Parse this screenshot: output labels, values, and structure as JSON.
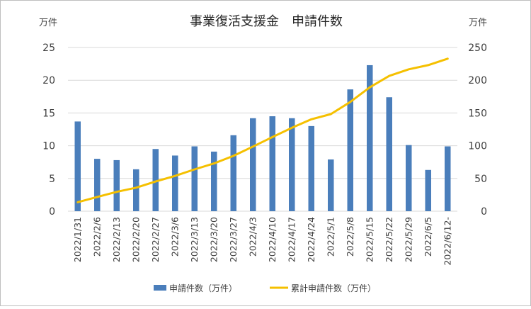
{
  "chart_data": {
    "type": "bar+line",
    "title": "事業復活支援金　申請件数",
    "y_left_unit": "万件",
    "y_right_unit": "万件",
    "ylim_left": [
      0,
      25
    ],
    "ylim_right": [
      0,
      250
    ],
    "y_left_ticks": [
      0,
      5,
      10,
      15,
      20,
      25
    ],
    "y_right_ticks": [
      0,
      50,
      100,
      150,
      200,
      250
    ],
    "categories": [
      "2022/1/31",
      "2022/2/6",
      "2022/2/13",
      "2022/2/20",
      "2022/2/27",
      "2022/3/6",
      "2022/3/13",
      "2022/3/20",
      "2022/3/27",
      "2022/4/3",
      "2022/4/10",
      "2022/4/17",
      "2022/4/24",
      "2022/5/1",
      "2022/5/8",
      "2022/5/15",
      "2022/5/22",
      "2022/5/29",
      "2022/6/5",
      "2022/6/12-"
    ],
    "series": [
      {
        "name": "申請件数（万件）",
        "type": "bar",
        "axis": "left",
        "color": "#4a7ebb",
        "values": [
          13.7,
          8.0,
          7.8,
          6.4,
          9.5,
          8.5,
          9.9,
          9.1,
          11.6,
          14.2,
          14.5,
          14.2,
          13.0,
          7.9,
          18.6,
          22.3,
          17.4,
          10.1,
          6.3,
          9.9
        ]
      },
      {
        "name": "累計申請件数（万件）",
        "type": "line",
        "axis": "right",
        "color": "#f5c000",
        "values": [
          13.7,
          21.7,
          29.5,
          35.9,
          45.4,
          53.9,
          63.8,
          72.9,
          84.5,
          98.7,
          113.2,
          127.4,
          140.4,
          148.3,
          166.9,
          189.2,
          206.6,
          216.7,
          223.0,
          232.9
        ]
      }
    ],
    "grid": true,
    "legend_position": "bottom"
  }
}
